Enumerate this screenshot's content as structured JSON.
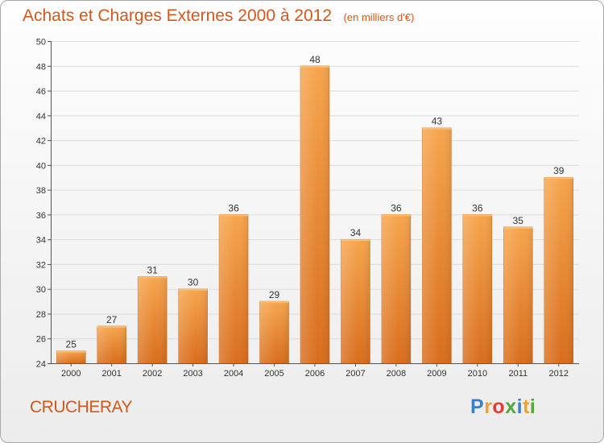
{
  "header": {
    "title": "Achats et Charges Externes 2000 à 2012",
    "unit": "(en milliers d'€)"
  },
  "footer": {
    "place": "CRUCHERAY",
    "logo_letters": [
      "P",
      "r",
      "o",
      "x",
      "i",
      "t",
      "i"
    ]
  },
  "colors": {
    "title": "#d2591e",
    "bar_top": "#f6a54d",
    "bar_bottom": "#d86d1c",
    "grid": "#dcdcdc",
    "logo": [
      "#3a7fc8",
      "#f2a02b",
      "#e63c2f",
      "#52a83c",
      "#3a7fc8",
      "#f2a02b",
      "#52a83c"
    ]
  },
  "chart_data": {
    "type": "bar",
    "title": "Achats et Charges Externes 2000 à 2012",
    "subtitle": "(en milliers d'€)",
    "xlabel": "",
    "ylabel": "",
    "categories": [
      "2000",
      "2001",
      "2002",
      "2003",
      "2004",
      "2005",
      "2006",
      "2007",
      "2008",
      "2009",
      "2010",
      "2011",
      "2012"
    ],
    "values": [
      25,
      27,
      31,
      30,
      36,
      29,
      48,
      34,
      36,
      43,
      36,
      35,
      39
    ],
    "ylim": [
      24,
      50
    ],
    "yticks": [
      24,
      26,
      28,
      30,
      32,
      34,
      36,
      38,
      40,
      42,
      44,
      46,
      48,
      50
    ],
    "grid": "horizontal",
    "data_labels": true
  }
}
